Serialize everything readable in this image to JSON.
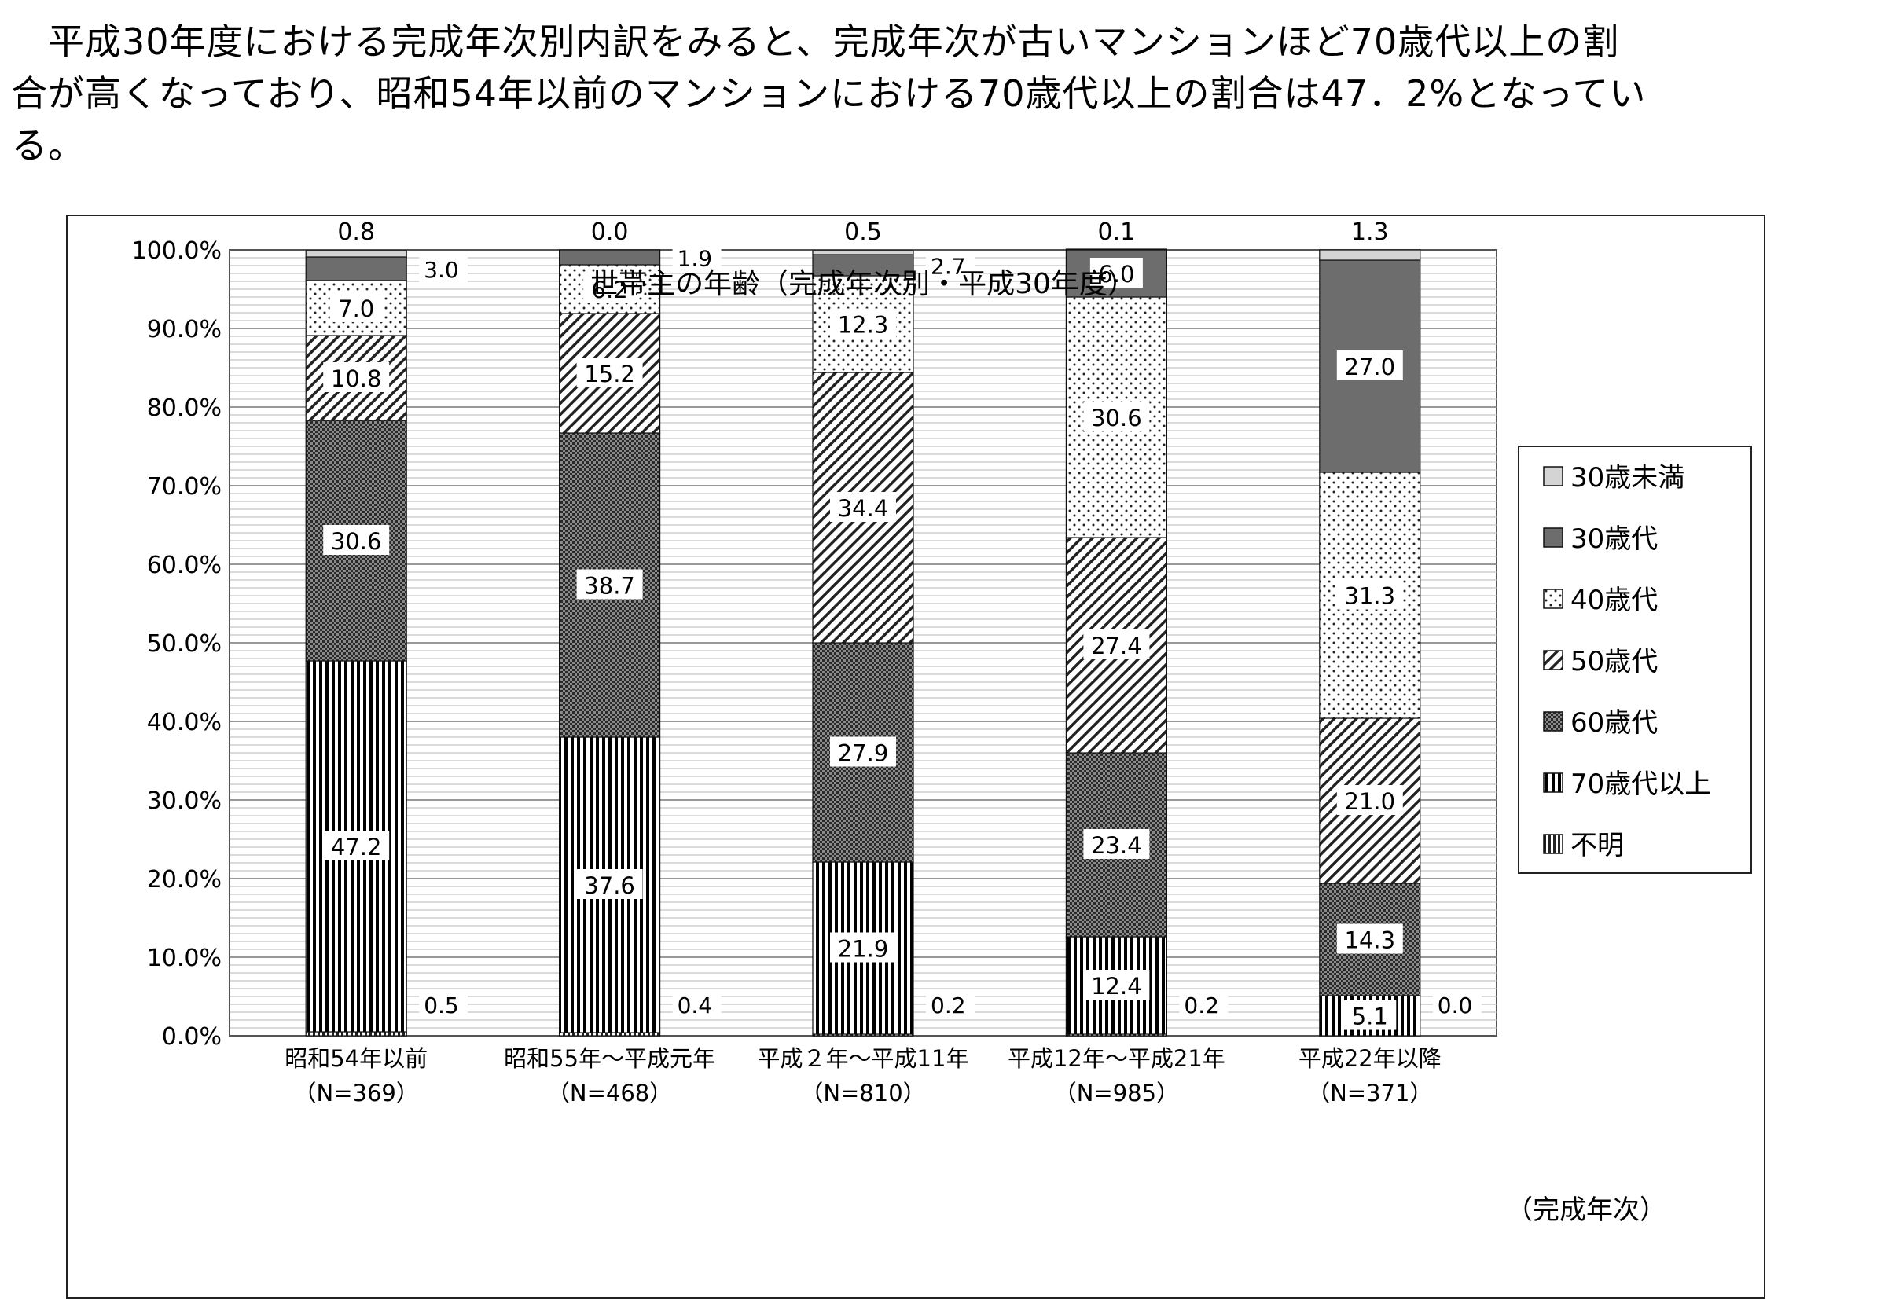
{
  "intro_lines": [
    "　平成30年度における完成年次別内訳をみると、完成年次が古いマンションほど70歳代以上の割",
    "合が高くなっており、昭和54年以前のマンションにおける70歳代以上の割合は47．2%となってい",
    "る。"
  ],
  "chart_data": {
    "type": "bar",
    "stacked": true,
    "title": "世帯主の年齢（完成年次別・平成30年度）",
    "xlabel": "（完成年次）",
    "ylabel": "",
    "ylim": [
      0,
      100
    ],
    "yticks": [
      "0.0%",
      "10.0%",
      "20.0%",
      "30.0%",
      "40.0%",
      "50.0%",
      "60.0%",
      "70.0%",
      "80.0%",
      "90.0%",
      "100.0%"
    ],
    "grid": true,
    "legend_position": "right",
    "categories": [
      "昭和54年以前",
      "昭和55年～平成元年",
      "平成２年～平成11年",
      "平成12年～平成21年",
      "平成22年以降"
    ],
    "category_n": [
      "（N=369）",
      "（N=468）",
      "（N=810）",
      "（N=985）",
      "（N=371）"
    ],
    "series": [
      {
        "name": "不明",
        "values": [
          0.5,
          0.4,
          0.2,
          0.2,
          0.0
        ],
        "color": "#333333",
        "pattern": "unknown"
      },
      {
        "name": "70歳代以上",
        "values": [
          47.2,
          37.6,
          21.9,
          12.4,
          5.1
        ],
        "color": "#000000",
        "pattern": "vertical"
      },
      {
        "name": "60歳代",
        "values": [
          30.6,
          38.7,
          27.9,
          23.4,
          14.3
        ],
        "color": "#555555",
        "pattern": "checker"
      },
      {
        "name": "50歳代",
        "values": [
          10.8,
          15.2,
          34.4,
          27.4,
          21.0
        ],
        "color": "#333333",
        "pattern": "diagonal"
      },
      {
        "name": "40歳代",
        "values": [
          7.0,
          6.2,
          12.3,
          30.6,
          31.3
        ],
        "color": "#333333",
        "pattern": "dots"
      },
      {
        "name": "30歳代",
        "values": [
          3.0,
          1.9,
          2.7,
          6.0,
          27.0
        ],
        "color": "#6d6d6d",
        "pattern": "solid"
      },
      {
        "name": "30歳未満",
        "values": [
          0.8,
          0.0,
          0.5,
          0.1,
          1.3
        ],
        "color": "#d4d4d4",
        "pattern": "solid"
      }
    ],
    "legend_order": [
      "30歳未満",
      "30歳代",
      "40歳代",
      "50歳代",
      "60歳代",
      "70歳代以上",
      "不明"
    ],
    "outside_labels": {
      "top": [
        "0.8",
        "0.0",
        "0.5",
        "0.1",
        "1.3"
      ],
      "side_30s": [
        "3.0",
        "1.9",
        "2.7"
      ],
      "side_unknown": [
        "0.5",
        "0.4",
        "0.2",
        "0.2",
        "0.0"
      ]
    },
    "inside_labels": {
      "70歳代以上": [
        "47.2",
        "37.6",
        "21.9",
        "12.4",
        "5.1"
      ],
      "60歳代": [
        "30.6",
        "38.7",
        "27.9",
        "23.4",
        "14.3"
      ],
      "50歳代": [
        "10.8",
        "15.2",
        "34.4",
        "27.4",
        "21.0"
      ],
      "40歳代": [
        "7.0",
        "6.2",
        "12.3",
        "30.6",
        "31.3"
      ],
      "30歳代": [
        "",
        "",
        "",
        "6.0",
        "27.0"
      ]
    }
  }
}
